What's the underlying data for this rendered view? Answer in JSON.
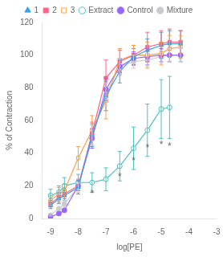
{
  "chart_data": {
    "type": "line",
    "xlabel": "log[PE]",
    "ylabel": "% of Contraction",
    "x": [
      -9,
      -8.7,
      -8.5,
      -8,
      -7.5,
      -7,
      -6.5,
      -6,
      -5.5,
      -5,
      -4.7,
      -4.3
    ],
    "series": [
      {
        "name": "1",
        "marker": "triangle",
        "values": [
          8,
          12,
          14,
          19,
          51,
          75,
          90,
          99,
          103,
          106,
          107,
          107
        ],
        "errors": [
          2,
          3,
          3,
          4,
          7,
          9,
          7,
          5,
          7,
          8,
          8,
          8
        ]
      },
      {
        "name": "2",
        "marker": "square",
        "values": [
          9,
          13,
          15,
          20,
          52,
          86,
          96,
          100,
          105,
          107,
          108,
          108
        ],
        "errors": [
          2,
          3,
          3,
          4,
          7,
          11,
          7,
          6,
          9,
          8,
          8,
          7
        ]
      },
      {
        "name": "3",
        "marker": "open square",
        "values": [
          11,
          15,
          17,
          37,
          54,
          72,
          97,
          100,
          100,
          101,
          104,
          105
        ],
        "errors": [
          3,
          4,
          4,
          7,
          9,
          11,
          7,
          6,
          8,
          7,
          8,
          7
        ]
      },
      {
        "name": "Extract",
        "marker": "open circle",
        "values": [
          14,
          16,
          20,
          22,
          22,
          24,
          32,
          43,
          54,
          67,
          68,
          null
        ],
        "errors": [
          4,
          4,
          5,
          5,
          6,
          7,
          9,
          13,
          16,
          18,
          19,
          null
        ]
      },
      {
        "name": "Control",
        "marker": "circle",
        "values": [
          1,
          3,
          5,
          20,
          49,
          79,
          93,
          98,
          99,
          100,
          100,
          100
        ],
        "errors": [
          0.5,
          1,
          1,
          3,
          6,
          7,
          5,
          4,
          5,
          4,
          4,
          4
        ]
      },
      {
        "name": "Mixture",
        "marker": "circle",
        "values": [
          2,
          6,
          9,
          19,
          51,
          76,
          93,
          96,
          97,
          99,
          100,
          100
        ],
        "errors": [
          0.5,
          1,
          2,
          3,
          6,
          7,
          5,
          4,
          4,
          4,
          4,
          4
        ]
      }
    ],
    "annotations": [
      {
        "x": -7.5,
        "y": 15,
        "text": "*"
      },
      {
        "x": -6.5,
        "y": 25,
        "text": "*"
      },
      {
        "x": -6.0,
        "y": 35,
        "text": "*"
      },
      {
        "x": -5.5,
        "y": 43,
        "text": "*"
      },
      {
        "x": -5.0,
        "y": 45,
        "text": "*"
      },
      {
        "x": -4.7,
        "y": 44,
        "text": "*"
      }
    ],
    "xlim": [
      -9.3,
      -3
    ],
    "ylim": [
      0,
      120
    ],
    "xticks": [
      -9,
      -8,
      -7,
      -6,
      -5,
      -4,
      -3
    ],
    "yticks": [
      0,
      20,
      40,
      60,
      80,
      100,
      120
    ],
    "grid": false,
    "legend": "top"
  }
}
